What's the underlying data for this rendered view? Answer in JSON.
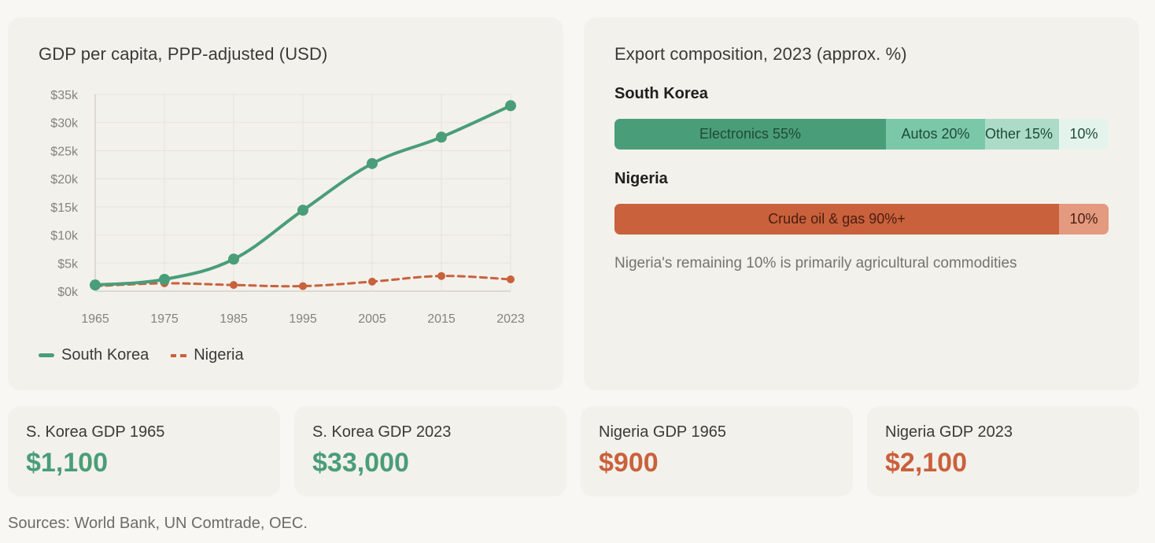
{
  "colors": {
    "south_korea": "#4a9d79",
    "nigeria": "#c9613c",
    "sk_electronics": "#4a9d79",
    "sk_autos": "#7ac8a8",
    "sk_other": "#acdcc8",
    "sk_rest": "#e4f4ed",
    "ng_oil": "#c9613c",
    "ng_rest": "#e39a7f"
  },
  "chart_data": [
    {
      "type": "line",
      "title": "GDP per capita, PPP-adjusted (USD)",
      "xlabel": "",
      "ylabel": "",
      "x": [
        1965,
        1975,
        1985,
        1995,
        2005,
        2015,
        2023
      ],
      "x_tick_labels": [
        "1965",
        "1975",
        "1985",
        "1995",
        "2005",
        "2015",
        "2023"
      ],
      "y_tick_labels": [
        "$0k",
        "$5k",
        "$10k",
        "$15k",
        "$20k",
        "$25k",
        "$30k",
        "$35k"
      ],
      "ylim": [
        0,
        35000
      ],
      "grid": true,
      "legend_position": "bottom-left",
      "series": [
        {
          "name": "South Korea",
          "style": "solid",
          "values": [
            1100,
            2100,
            5700,
            14400,
            22700,
            27400,
            33000
          ]
        },
        {
          "name": "Nigeria",
          "style": "dashed",
          "values": [
            900,
            1400,
            1100,
            900,
            1700,
            2700,
            2100
          ]
        }
      ]
    },
    {
      "type": "bar",
      "orientation": "horizontal-stacked",
      "title": "Export composition, 2023 (approx. %)",
      "categories": [
        "South Korea",
        "Nigeria"
      ],
      "series": [
        {
          "country": "South Korea",
          "segments": [
            {
              "name": "Electronics",
              "value": 55
            },
            {
              "name": "Autos",
              "value": 20
            },
            {
              "name": "Other",
              "value": 15
            },
            {
              "name": "Remaining",
              "value": 10
            }
          ]
        },
        {
          "country": "Nigeria",
          "segments": [
            {
              "name": "Crude oil & gas",
              "value": 90
            },
            {
              "name": "Remaining",
              "value": 10
            }
          ]
        }
      ],
      "annotation": "Nigeria's remaining 10% is primarily agricultural commodities"
    }
  ],
  "gdp_chart": {
    "title": "GDP per capita, PPP-adjusted (USD)",
    "legend": {
      "south_korea": "South Korea",
      "nigeria": "Nigeria"
    }
  },
  "exports": {
    "title": "Export composition, 2023 (approx. %)",
    "south_korea": {
      "label": "South Korea",
      "segments": [
        "Electronics 55%",
        "Autos 20%",
        "Other 15%",
        "10%"
      ]
    },
    "nigeria": {
      "label": "Nigeria",
      "segments": [
        "Crude oil & gas 90%+",
        "10%"
      ]
    },
    "note": "Nigeria's remaining 10% is primarily agricultural commodities"
  },
  "stats": [
    {
      "label": "S. Korea GDP 1965",
      "value": "$1,100"
    },
    {
      "label": "S. Korea GDP 2023",
      "value": "$33,000"
    },
    {
      "label": "Nigeria GDP 1965",
      "value": "$900"
    },
    {
      "label": "Nigeria GDP 2023",
      "value": "$2,100"
    }
  ],
  "sources": "Sources: World Bank, UN Comtrade, OEC."
}
